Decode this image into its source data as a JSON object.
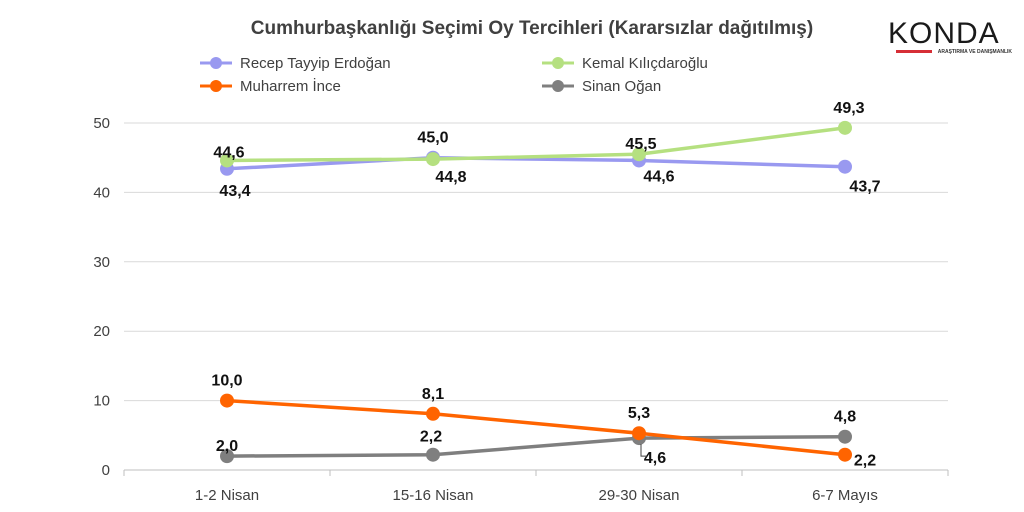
{
  "brand": {
    "logo_text": "KONDA",
    "logo_subtitle": "ARAŞTIRMA VE DANIŞMANLIK",
    "accent_color": "#d62e36"
  },
  "chart_data": {
    "type": "line",
    "title": "Cumhurbaşkanlığı Seçimi Oy Tercihleri (Kararsızlar dağıtılmış)",
    "categories": [
      "1-2 Nisan",
      "15-16 Nisan",
      "29-30 Nisan",
      "6-7 Mayıs"
    ],
    "ylim": [
      0,
      50
    ],
    "yticks": [
      0,
      10,
      20,
      30,
      40,
      50
    ],
    "grid": true,
    "legend_position": "top",
    "series": [
      {
        "name": "Recep Tayyip Erdoğan",
        "color": "#9999f0",
        "values": [
          43.4,
          45.0,
          44.6,
          43.7
        ],
        "labels": [
          "43,4",
          "45,0",
          "44,6",
          "43,7"
        ]
      },
      {
        "name": "Kemal Kılıçdaroğlu",
        "color": "#b5e080",
        "values": [
          44.6,
          44.8,
          45.5,
          49.3
        ],
        "labels": [
          "44,6",
          "44,8",
          "45,5",
          "49,3"
        ]
      },
      {
        "name": "Muharrem İnce",
        "color": "#ff6400",
        "values": [
          10.0,
          8.1,
          5.3,
          2.2
        ],
        "labels": [
          "10,0",
          "8,1",
          "5,3",
          "2,2"
        ]
      },
      {
        "name": "Sinan Oğan",
        "color": "#7f7f7f",
        "values": [
          2.0,
          2.2,
          4.6,
          4.8
        ],
        "labels": [
          "2,0",
          "2,2",
          "4,6",
          "4,8"
        ]
      }
    ]
  }
}
